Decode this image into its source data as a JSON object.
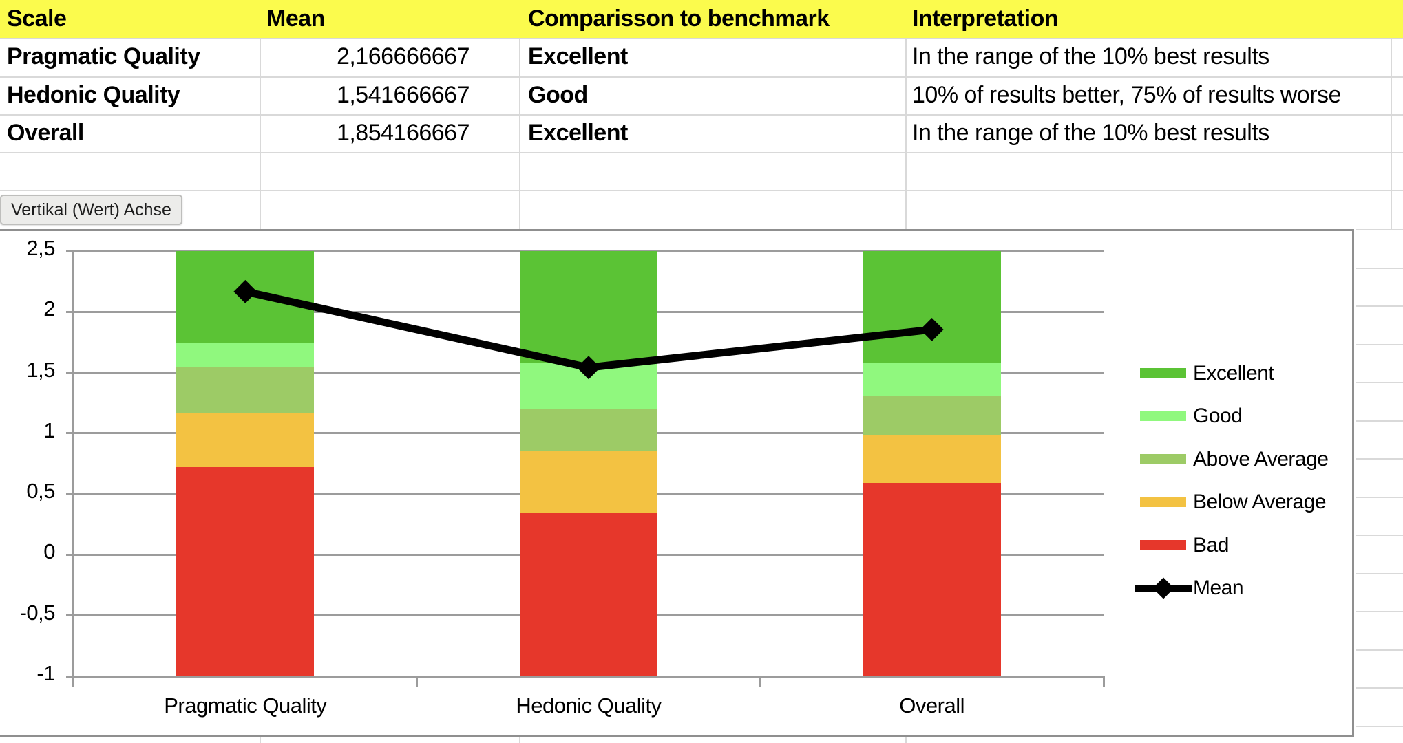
{
  "table": {
    "columns": [
      {
        "label": "Scale"
      },
      {
        "label": "Mean"
      },
      {
        "label": "Comparisson to benchmark"
      },
      {
        "label": "Interpretation"
      }
    ],
    "rows": [
      {
        "scale": "Pragmatic Quality",
        "mean": "2,166666667",
        "benchmark": "Excellent",
        "interpretation": "In the range of the 10% best results"
      },
      {
        "scale": "Hedonic Quality",
        "mean": "1,541666667",
        "benchmark": "Good",
        "interpretation": "10% of results better, 75% of results worse"
      },
      {
        "scale": "Overall",
        "mean": "1,854166667",
        "benchmark": "Excellent",
        "interpretation": "In the range of the 10% best results"
      }
    ]
  },
  "tooltip": {
    "text": "Vertikal (Wert) Achse"
  },
  "chart_data": {
    "type": "bar",
    "subtype": "stacked-with-line",
    "categories": [
      "Pragmatic Quality",
      "Hedonic Quality",
      "Overall"
    ],
    "base": -1,
    "series": [
      {
        "name": "Bad",
        "color": "#E6372B",
        "values": [
          1.72,
          1.35,
          1.59
        ]
      },
      {
        "name": "Below Average",
        "color": "#F3C242",
        "values": [
          0.45,
          0.5,
          0.39
        ]
      },
      {
        "name": "Above Average",
        "color": "#9DCB66",
        "values": [
          0.38,
          0.35,
          0.33
        ]
      },
      {
        "name": "Good",
        "color": "#90F87E",
        "values": [
          0.19,
          0.38,
          0.27
        ]
      },
      {
        "name": "Excellent",
        "color": "#5BC335",
        "values": [
          0.76,
          0.92,
          0.92
        ]
      }
    ],
    "mean_series": {
      "name": "Mean",
      "color": "#000000",
      "values": [
        2.166666667,
        1.541666667,
        1.854166667
      ]
    },
    "ylim": [
      -1,
      2.5
    ],
    "yticks": [
      {
        "v": 2.5,
        "label": "2,5"
      },
      {
        "v": 2,
        "label": "2"
      },
      {
        "v": 1.5,
        "label": "1,5"
      },
      {
        "v": 1,
        "label": "1"
      },
      {
        "v": 0.5,
        "label": "0,5"
      },
      {
        "v": 0,
        "label": "0"
      },
      {
        "v": -0.5,
        "label": "-0,5"
      },
      {
        "v": -1,
        "label": "-1"
      }
    ],
    "grid": true,
    "legend_position": "right",
    "legend": [
      "Excellent",
      "Good",
      "Above Average",
      "Below Average",
      "Bad",
      "Mean"
    ]
  }
}
